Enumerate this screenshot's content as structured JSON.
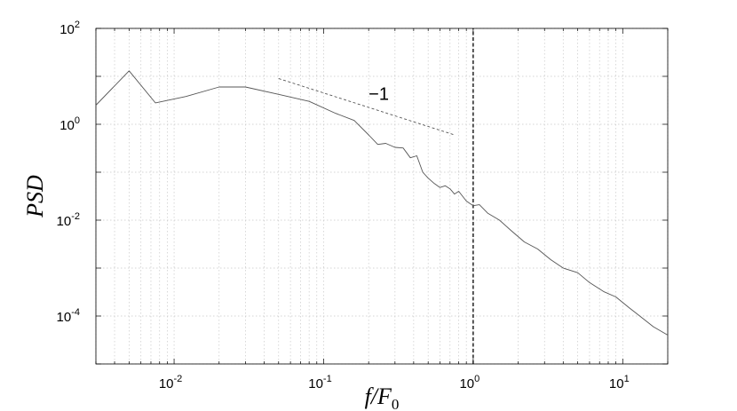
{
  "chart_data": {
    "type": "line",
    "title": "",
    "xlabel": "f/F₀",
    "ylabel": "PSD",
    "xscale": "log",
    "yscale": "log",
    "xlim": [
      0.003,
      20
    ],
    "ylim": [
      1e-05,
      100
    ],
    "grid": true,
    "x_tick_labels": [
      {
        "value": 0.01,
        "base": "10",
        "exp": "-2"
      },
      {
        "value": 0.1,
        "base": "10",
        "exp": "-1"
      },
      {
        "value": 1,
        "base": "10",
        "exp": "0"
      },
      {
        "value": 10,
        "base": "10",
        "exp": "1"
      }
    ],
    "y_tick_labels": [
      {
        "value": 0.0001,
        "base": "10",
        "exp": "-4"
      },
      {
        "value": 0.01,
        "base": "10",
        "exp": "-2"
      },
      {
        "value": 1,
        "base": "10",
        "exp": "0"
      },
      {
        "value": 100,
        "base": "10",
        "exp": "2"
      }
    ],
    "series": [
      {
        "style": "solid",
        "color": "#555555",
        "x": [
          0.003,
          0.005,
          0.0075,
          0.012,
          0.02,
          0.03,
          0.05,
          0.08,
          0.12,
          0.16,
          0.2,
          0.23,
          0.26,
          0.3,
          0.34,
          0.38,
          0.42,
          0.46,
          0.5,
          0.55,
          0.6,
          0.65,
          0.7,
          0.75,
          0.8,
          0.9,
          1.0,
          1.1,
          1.25,
          1.5,
          1.8,
          2.2,
          2.7,
          3.3,
          4.0,
          5.0,
          6.0,
          7.5,
          9.0,
          11.0,
          13.0,
          16.0,
          20.0
        ],
        "y": [
          2.5,
          13,
          2.8,
          3.8,
          6.0,
          6.0,
          4.2,
          3.0,
          1.7,
          1.2,
          0.6,
          0.38,
          0.4,
          0.33,
          0.32,
          0.2,
          0.22,
          0.1,
          0.075,
          0.058,
          0.048,
          0.052,
          0.045,
          0.035,
          0.04,
          0.025,
          0.02,
          0.021,
          0.014,
          0.01,
          0.006,
          0.0035,
          0.0025,
          0.0015,
          0.001,
          0.0008,
          0.0005,
          0.00032,
          0.00025,
          0.00015,
          0.0001,
          6e-05,
          4e-05
        ]
      }
    ],
    "reference_lines": [
      {
        "style": "dashed",
        "color": "#555555",
        "x": [
          0.05,
          0.75
        ],
        "y": [
          9.0,
          0.6
        ]
      },
      {
        "style": "dashed",
        "color": "#000000",
        "x": [
          1,
          1
        ],
        "y": [
          1e-05,
          100
        ]
      }
    ],
    "annotations": [
      {
        "text": "−1",
        "x": 0.2,
        "y": 3.2
      }
    ]
  }
}
